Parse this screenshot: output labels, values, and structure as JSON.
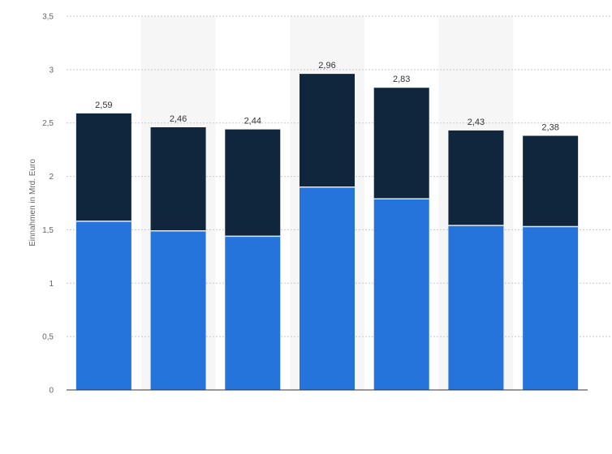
{
  "chart_data": {
    "type": "bar",
    "stacked": true,
    "categories": [
      "",
      "",
      "",
      "",
      "",
      "",
      ""
    ],
    "series": [
      {
        "values": [
          1.58,
          1.49,
          1.44,
          1.9,
          1.79,
          1.54,
          1.53
        ],
        "color": "#2574DB"
      },
      {
        "values": [
          1.01,
          0.97,
          1.0,
          1.06,
          1.04,
          0.89,
          0.85
        ],
        "color": "#0F263D"
      }
    ],
    "totals": [
      2.59,
      2.46,
      2.44,
      2.96,
      2.83,
      2.43,
      2.38
    ],
    "total_labels": [
      "2,59",
      "2,46",
      "2,44",
      "2,96",
      "2,83",
      "2,43",
      "2,38"
    ],
    "title": "",
    "xlabel": "",
    "ylabel": "Einnahmen in Mrd. Euro",
    "ylim": [
      0,
      3.5
    ],
    "yticks": [
      0,
      0.5,
      1,
      1.5,
      2,
      2.5,
      3,
      3.5
    ],
    "ytick_labels": [
      "0",
      "0,5",
      "1",
      "1,5",
      "2",
      "2,5",
      "3",
      "3,5"
    ],
    "grid": true,
    "alternating_column_shading": true,
    "legend": "none"
  }
}
